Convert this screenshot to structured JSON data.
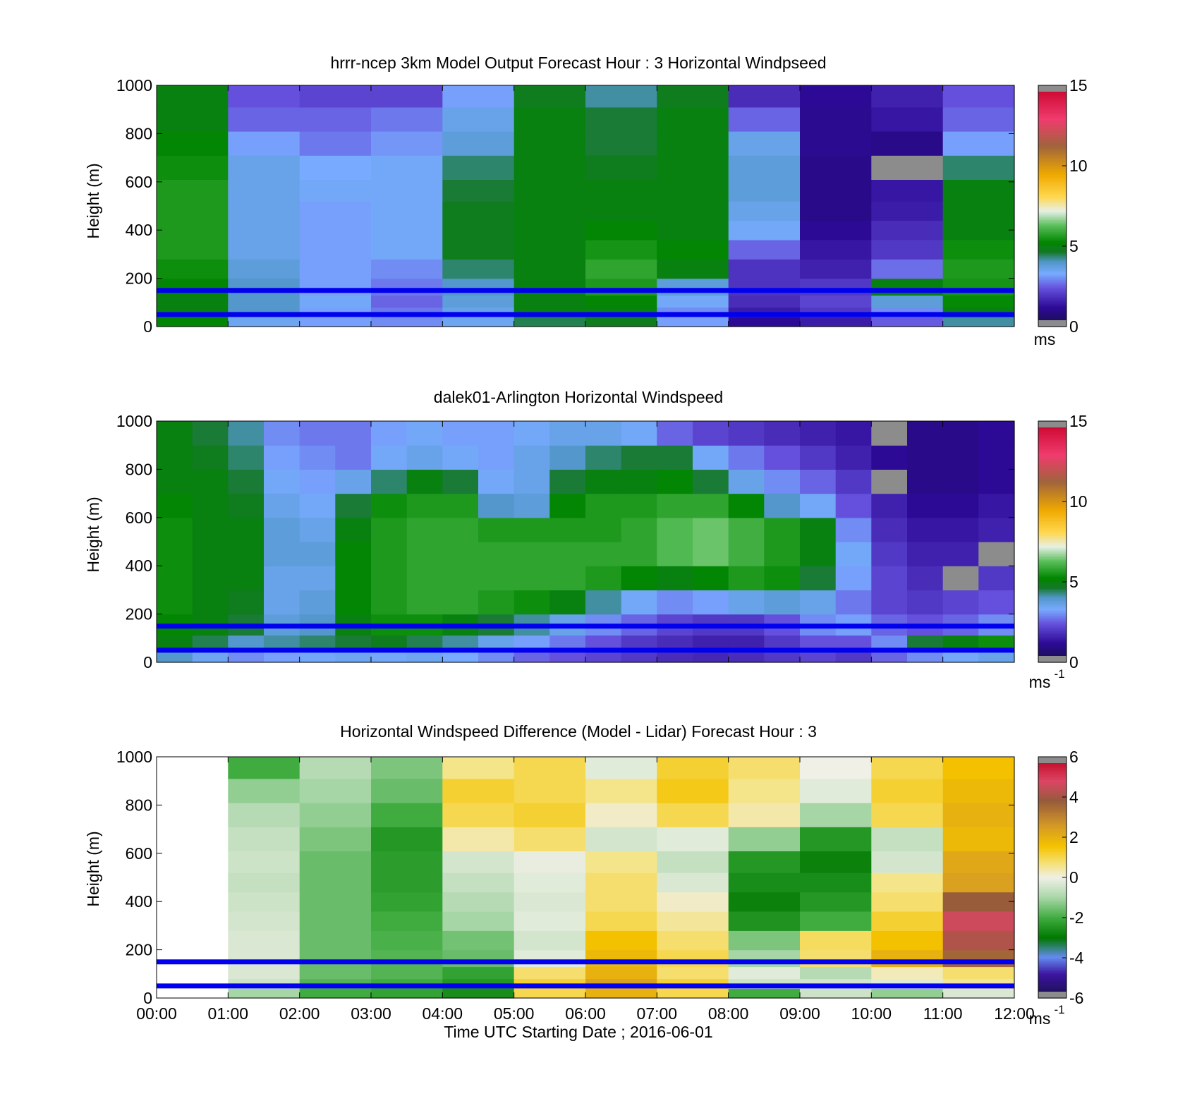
{
  "chart_data": [
    {
      "type": "heatmap",
      "title": "hrrr-ncep 3km Model Output   Forecast Hour : 3 Horizontal Windpseed",
      "ylabel": "Height (m)",
      "xlabel": "",
      "ylim": [
        0,
        1000
      ],
      "yticks": [
        "0",
        "200",
        "400",
        "600",
        "800",
        "1000"
      ],
      "xlim": [
        "00:00",
        "12:00"
      ],
      "colorbar": {
        "range": [
          0,
          15
        ],
        "ticks": [
          "0",
          "5",
          "10",
          "15"
        ],
        "unit": "ms",
        "unit_sup": ""
      },
      "reference_lines_m": [
        150,
        50
      ],
      "reference_line_color": "#0000ee",
      "heights_m": [
        20,
        60,
        100,
        160,
        240,
        320,
        400,
        480,
        560,
        660,
        760,
        860,
        960
      ],
      "hours": [
        0,
        1,
        2,
        3,
        4,
        5,
        6,
        7,
        8,
        9,
        10,
        11
      ],
      "windspeed_ms": [
        [
          5.2,
          3.5,
          3.2,
          3.0,
          3.5,
          4.5,
          4.8,
          3.2,
          1.2,
          1.5,
          2.5,
          4.2
        ],
        [
          5.0,
          4.0,
          3.2,
          2.8,
          3.6,
          5.0,
          5.0,
          3.0,
          1.5,
          2.0,
          3.0,
          5.0
        ],
        [
          5.0,
          4.0,
          3.4,
          2.6,
          3.8,
          5.0,
          5.2,
          3.4,
          1.8,
          2.2,
          3.8,
          5.3
        ],
        [
          5.2,
          4.0,
          3.2,
          2.8,
          4.0,
          5.0,
          5.6,
          3.8,
          1.9,
          2.0,
          5.0,
          5.5
        ],
        [
          5.4,
          3.8,
          3.2,
          3.0,
          4.4,
          5.0,
          5.8,
          5.0,
          1.9,
          1.6,
          2.7,
          5.6
        ],
        [
          5.6,
          3.6,
          3.2,
          3.4,
          4.8,
          5.0,
          5.5,
          5.2,
          2.6,
          1.4,
          2.0,
          5.4
        ],
        [
          5.6,
          3.6,
          3.2,
          3.4,
          4.8,
          5.0,
          5.2,
          5.0,
          3.4,
          1.2,
          1.8,
          5.0
        ],
        [
          5.6,
          3.6,
          3.2,
          3.4,
          4.8,
          5.0,
          5.0,
          5.0,
          3.6,
          1.0,
          1.5,
          5.0
        ],
        [
          5.6,
          3.6,
          3.4,
          3.4,
          4.6,
          5.0,
          5.0,
          5.0,
          3.8,
          1.0,
          1.4,
          5.0
        ],
        [
          5.4,
          3.6,
          3.3,
          3.4,
          4.4,
          5.0,
          4.8,
          5.0,
          3.8,
          1.0,
          -1,
          4.4
        ],
        [
          5.2,
          3.2,
          2.8,
          3.1,
          3.8,
          5.0,
          4.6,
          5.0,
          3.6,
          1.1,
          1.0,
          3.2
        ],
        [
          5.0,
          2.6,
          2.6,
          2.8,
          3.6,
          5.0,
          4.6,
          5.0,
          2.6,
          1.1,
          1.4,
          2.6
        ],
        [
          5.0,
          2.4,
          2.2,
          2.2,
          3.2,
          4.8,
          4.2,
          4.8,
          1.8,
          1.2,
          1.6,
          2.4
        ]
      ]
    },
    {
      "type": "heatmap",
      "title": "dalek01-Arlington  Horizontal Windspeed",
      "ylabel": "Height (m)",
      "xlabel": "",
      "ylim": [
        0,
        1000
      ],
      "yticks": [
        "0",
        "200",
        "400",
        "600",
        "800",
        "1000"
      ],
      "xlim": [
        "00:00",
        "12:00"
      ],
      "colorbar": {
        "range": [
          0,
          15
        ],
        "ticks": [
          "0",
          "5",
          "10",
          "15"
        ],
        "unit": "ms",
        "unit_sup": "-1"
      },
      "reference_lines_m": [
        150,
        50
      ],
      "reference_line_color": "#0000ee",
      "heights_m": [
        25,
        75,
        150,
        250,
        350,
        450,
        550,
        650,
        750,
        850,
        950
      ],
      "hours": [
        0,
        0.5,
        1,
        1.5,
        2,
        2.5,
        3,
        3.5,
        4,
        4.5,
        5,
        5.5,
        6,
        6.5,
        7,
        7.5,
        8,
        8.5,
        9,
        9.5,
        10,
        10.5,
        11,
        11.5
      ],
      "windspeed_ms": [
        [
          4.0,
          3.5,
          3.0,
          3.2,
          3.4,
          3.5,
          3.4,
          3.5,
          3.3,
          3.0,
          2.6,
          2.4,
          2.2,
          2.0,
          1.8,
          1.7,
          1.8,
          2.0,
          2.2,
          2.0,
          2.6,
          3.0,
          3.4,
          3.6
        ],
        [
          5.0,
          4.5,
          4.0,
          4.2,
          4.4,
          4.6,
          4.8,
          4.5,
          4.2,
          3.6,
          3.2,
          2.8,
          2.4,
          2.0,
          1.8,
          1.6,
          1.6,
          2.0,
          2.4,
          2.4,
          3.0,
          4.6,
          5.0,
          5.4
        ],
        [
          5.2,
          5.0,
          4.6,
          3.8,
          4.0,
          5.0,
          5.4,
          5.4,
          5.0,
          4.6,
          4.2,
          3.6,
          3.0,
          2.6,
          2.2,
          2.0,
          2.0,
          2.4,
          3.0,
          3.2,
          2.6,
          2.4,
          2.6,
          3.0
        ],
        [
          5.4,
          5.0,
          4.8,
          3.6,
          3.8,
          5.2,
          5.6,
          5.8,
          5.8,
          5.6,
          5.4,
          5.0,
          4.2,
          3.4,
          3.0,
          3.2,
          3.6,
          3.8,
          3.6,
          2.8,
          2.2,
          2.0,
          2.2,
          2.4
        ],
        [
          5.4,
          5.0,
          5.0,
          3.6,
          3.6,
          5.2,
          5.6,
          5.8,
          5.8,
          5.8,
          5.8,
          5.8,
          5.6,
          5.2,
          5.0,
          5.2,
          5.6,
          5.4,
          4.6,
          3.2,
          2.2,
          1.8,
          -1,
          2.0
        ],
        [
          5.4,
          5.0,
          5.0,
          3.8,
          3.8,
          5.2,
          5.6,
          5.8,
          5.8,
          5.8,
          5.8,
          5.8,
          5.8,
          5.8,
          6.2,
          6.4,
          6.0,
          5.6,
          5.0,
          3.4,
          2.0,
          1.6,
          1.6,
          -1
        ],
        [
          5.4,
          5.0,
          5.0,
          3.8,
          3.6,
          5.0,
          5.6,
          5.8,
          5.8,
          5.6,
          5.6,
          5.6,
          5.6,
          5.8,
          6.2,
          6.4,
          6.0,
          5.6,
          5.0,
          3.0,
          1.8,
          1.4,
          1.4,
          1.6
        ],
        [
          5.2,
          5.0,
          4.8,
          3.6,
          3.4,
          4.6,
          5.4,
          5.6,
          5.6,
          4.0,
          3.8,
          5.2,
          5.6,
          5.6,
          5.8,
          5.8,
          5.2,
          4.0,
          3.4,
          2.4,
          1.6,
          1.2,
          1.2,
          1.4
        ],
        [
          5.0,
          5.0,
          4.6,
          3.4,
          3.2,
          3.6,
          4.4,
          5.0,
          4.6,
          3.4,
          3.6,
          4.6,
          5.0,
          5.0,
          5.2,
          4.6,
          3.6,
          3.0,
          2.6,
          2.0,
          -1,
          1.0,
          1.0,
          1.2
        ],
        [
          5.0,
          4.8,
          4.4,
          3.2,
          3.0,
          2.8,
          3.4,
          3.6,
          3.4,
          3.2,
          3.6,
          4.0,
          4.4,
          4.6,
          4.6,
          3.4,
          2.8,
          2.4,
          2.0,
          1.6,
          1.2,
          1.0,
          1.0,
          1.2
        ],
        [
          5.0,
          4.6,
          4.2,
          3.0,
          2.8,
          2.8,
          3.2,
          3.4,
          3.2,
          3.2,
          3.4,
          3.6,
          3.6,
          3.4,
          2.6,
          2.2,
          2.0,
          1.8,
          1.6,
          1.4,
          -1,
          1.0,
          1.0,
          1.2
        ]
      ]
    },
    {
      "type": "heatmap",
      "title": "Horizontal Windspeed Difference (Model - Lidar) Forecast Hour : 3",
      "ylabel": "Height (m)",
      "xlabel": "Time UTC  Starting Date ; 2016-06-01",
      "ylim": [
        0,
        1000
      ],
      "yticks": [
        "0",
        "200",
        "400",
        "600",
        "800",
        "1000"
      ],
      "xticks": [
        "00:00",
        "01:00",
        "02:00",
        "03:00",
        "04:00",
        "05:00",
        "06:00",
        "07:00",
        "08:00",
        "09:00",
        "10:00",
        "11:00",
        "12:00"
      ],
      "colorbar": {
        "range": [
          -6,
          6
        ],
        "ticks": [
          "-6",
          "-4",
          "-2",
          "0",
          "2",
          "4",
          "6"
        ],
        "unit": "ms",
        "unit_sup": "-1"
      },
      "reference_lines_m": [
        150,
        50
      ],
      "reference_line_color": "#0000ee",
      "heights_m": [
        20,
        60,
        100,
        160,
        240,
        320,
        400,
        480,
        560,
        660,
        760,
        860,
        960
      ],
      "hours": [
        0,
        1,
        2,
        3,
        4,
        5,
        6,
        7,
        8,
        9,
        10,
        11
      ],
      "difference_ms": [
        [
          null,
          -1.0,
          -2.0,
          -2.2,
          -2.6,
          1.0,
          2.0,
          1.0,
          -2.0,
          -0.5,
          -1.2,
          -0.3
        ],
        [
          null,
          -0.5,
          -1.8,
          -2.0,
          -2.4,
          1.2,
          2.4,
          1.2,
          -0.5,
          -0.4,
          -0.2,
          0.5
        ],
        [
          null,
          -0.3,
          -1.6,
          -1.8,
          -2.2,
          0.8,
          2.0,
          0.8,
          -0.2,
          -0.8,
          0.3,
          0.8
        ],
        [
          null,
          -0.3,
          -1.6,
          -1.8,
          -1.6,
          -0.2,
          1.8,
          1.0,
          -1.0,
          0.8,
          2.0,
          3.6
        ],
        [
          null,
          -0.3,
          -1.6,
          -1.9,
          -1.5,
          -0.4,
          1.6,
          0.8,
          -1.4,
          0.9,
          1.6,
          4.2
        ],
        [
          null,
          -0.4,
          -1.6,
          -2.0,
          -1.0,
          -0.2,
          1.0,
          0.5,
          -2.5,
          -2.0,
          1.2,
          4.6
        ],
        [
          null,
          -0.5,
          -1.6,
          -2.2,
          -0.8,
          -0.3,
          0.8,
          0.2,
          -2.8,
          -2.4,
          0.8,
          3.8
        ],
        [
          null,
          -0.6,
          -1.6,
          -2.3,
          -0.6,
          -0.2,
          0.8,
          -0.3,
          -2.6,
          -2.6,
          0.6,
          2.4
        ],
        [
          null,
          -0.5,
          -1.6,
          -2.3,
          -0.4,
          -0.1,
          0.6,
          -0.6,
          -2.4,
          -2.8,
          -0.4,
          2.2
        ],
        [
          null,
          -0.6,
          -1.4,
          -2.4,
          0.4,
          0.8,
          -0.4,
          -0.2,
          -1.2,
          -2.4,
          -0.6,
          1.8
        ],
        [
          null,
          -0.8,
          -1.2,
          -2.0,
          1.0,
          1.2,
          0.2,
          1.0,
          0.4,
          -1.0,
          1.0,
          2.0
        ],
        [
          null,
          -1.2,
          -1.0,
          -1.6,
          1.2,
          1.0,
          0.6,
          1.4,
          0.6,
          -0.2,
          1.2,
          1.8
        ],
        [
          null,
          -2.0,
          -0.8,
          -1.4,
          0.6,
          1.0,
          -0.2,
          1.2,
          0.8,
          0.0,
          1.0,
          1.6
        ]
      ]
    }
  ]
}
